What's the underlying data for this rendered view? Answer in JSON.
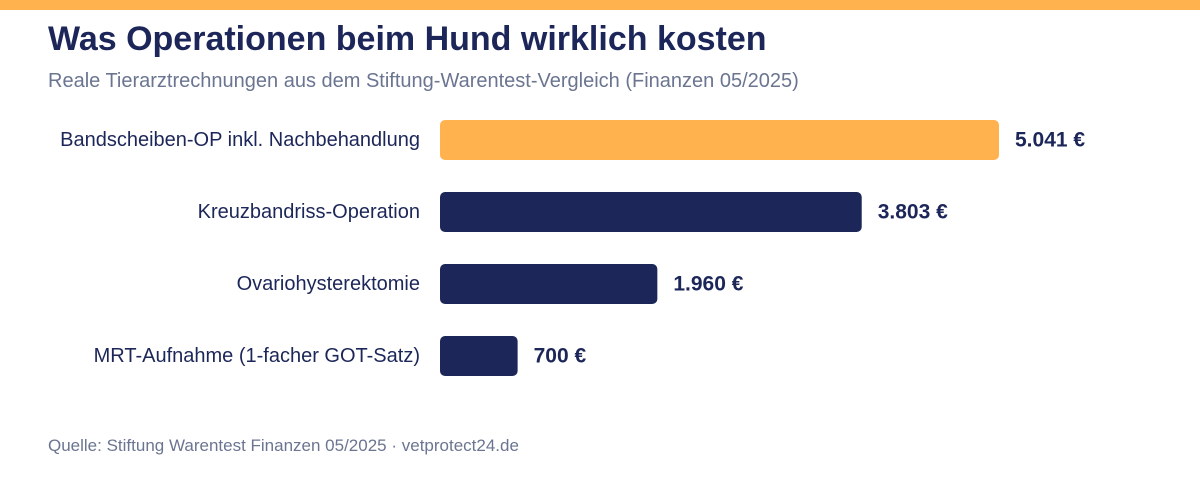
{
  "header": {
    "title": "Was Operationen beim Hund wirklich kosten",
    "subtitle": "Reale Tierarztrechnungen aus dem Stiftung-Warentest-Vergleich (Finanzen 05/2025)"
  },
  "footer": {
    "source": "Quelle: Stiftung Warentest Finanzen 05/2025 · vetprotect24.de"
  },
  "colors": {
    "accent": "#ffb24d",
    "bar": "#1c2659",
    "text": "#1c2659",
    "muted": "#6b7591"
  },
  "chart_data": {
    "type": "bar",
    "orientation": "horizontal",
    "categories": [
      "Bandscheiben-OP inkl. Nachbehandlung",
      "Kreuzbandriss-Operation",
      "Ovariohysterektomie",
      "MRT-Aufnahme (1-facher GOT-Satz)"
    ],
    "values": [
      5041,
      3803,
      1960,
      700
    ],
    "value_labels": [
      "5.041 €",
      "3.803 €",
      "1.960 €",
      "700 €"
    ],
    "highlight_index": 0,
    "xlim": [
      0,
      5041
    ],
    "grid": false,
    "legend": "none"
  }
}
